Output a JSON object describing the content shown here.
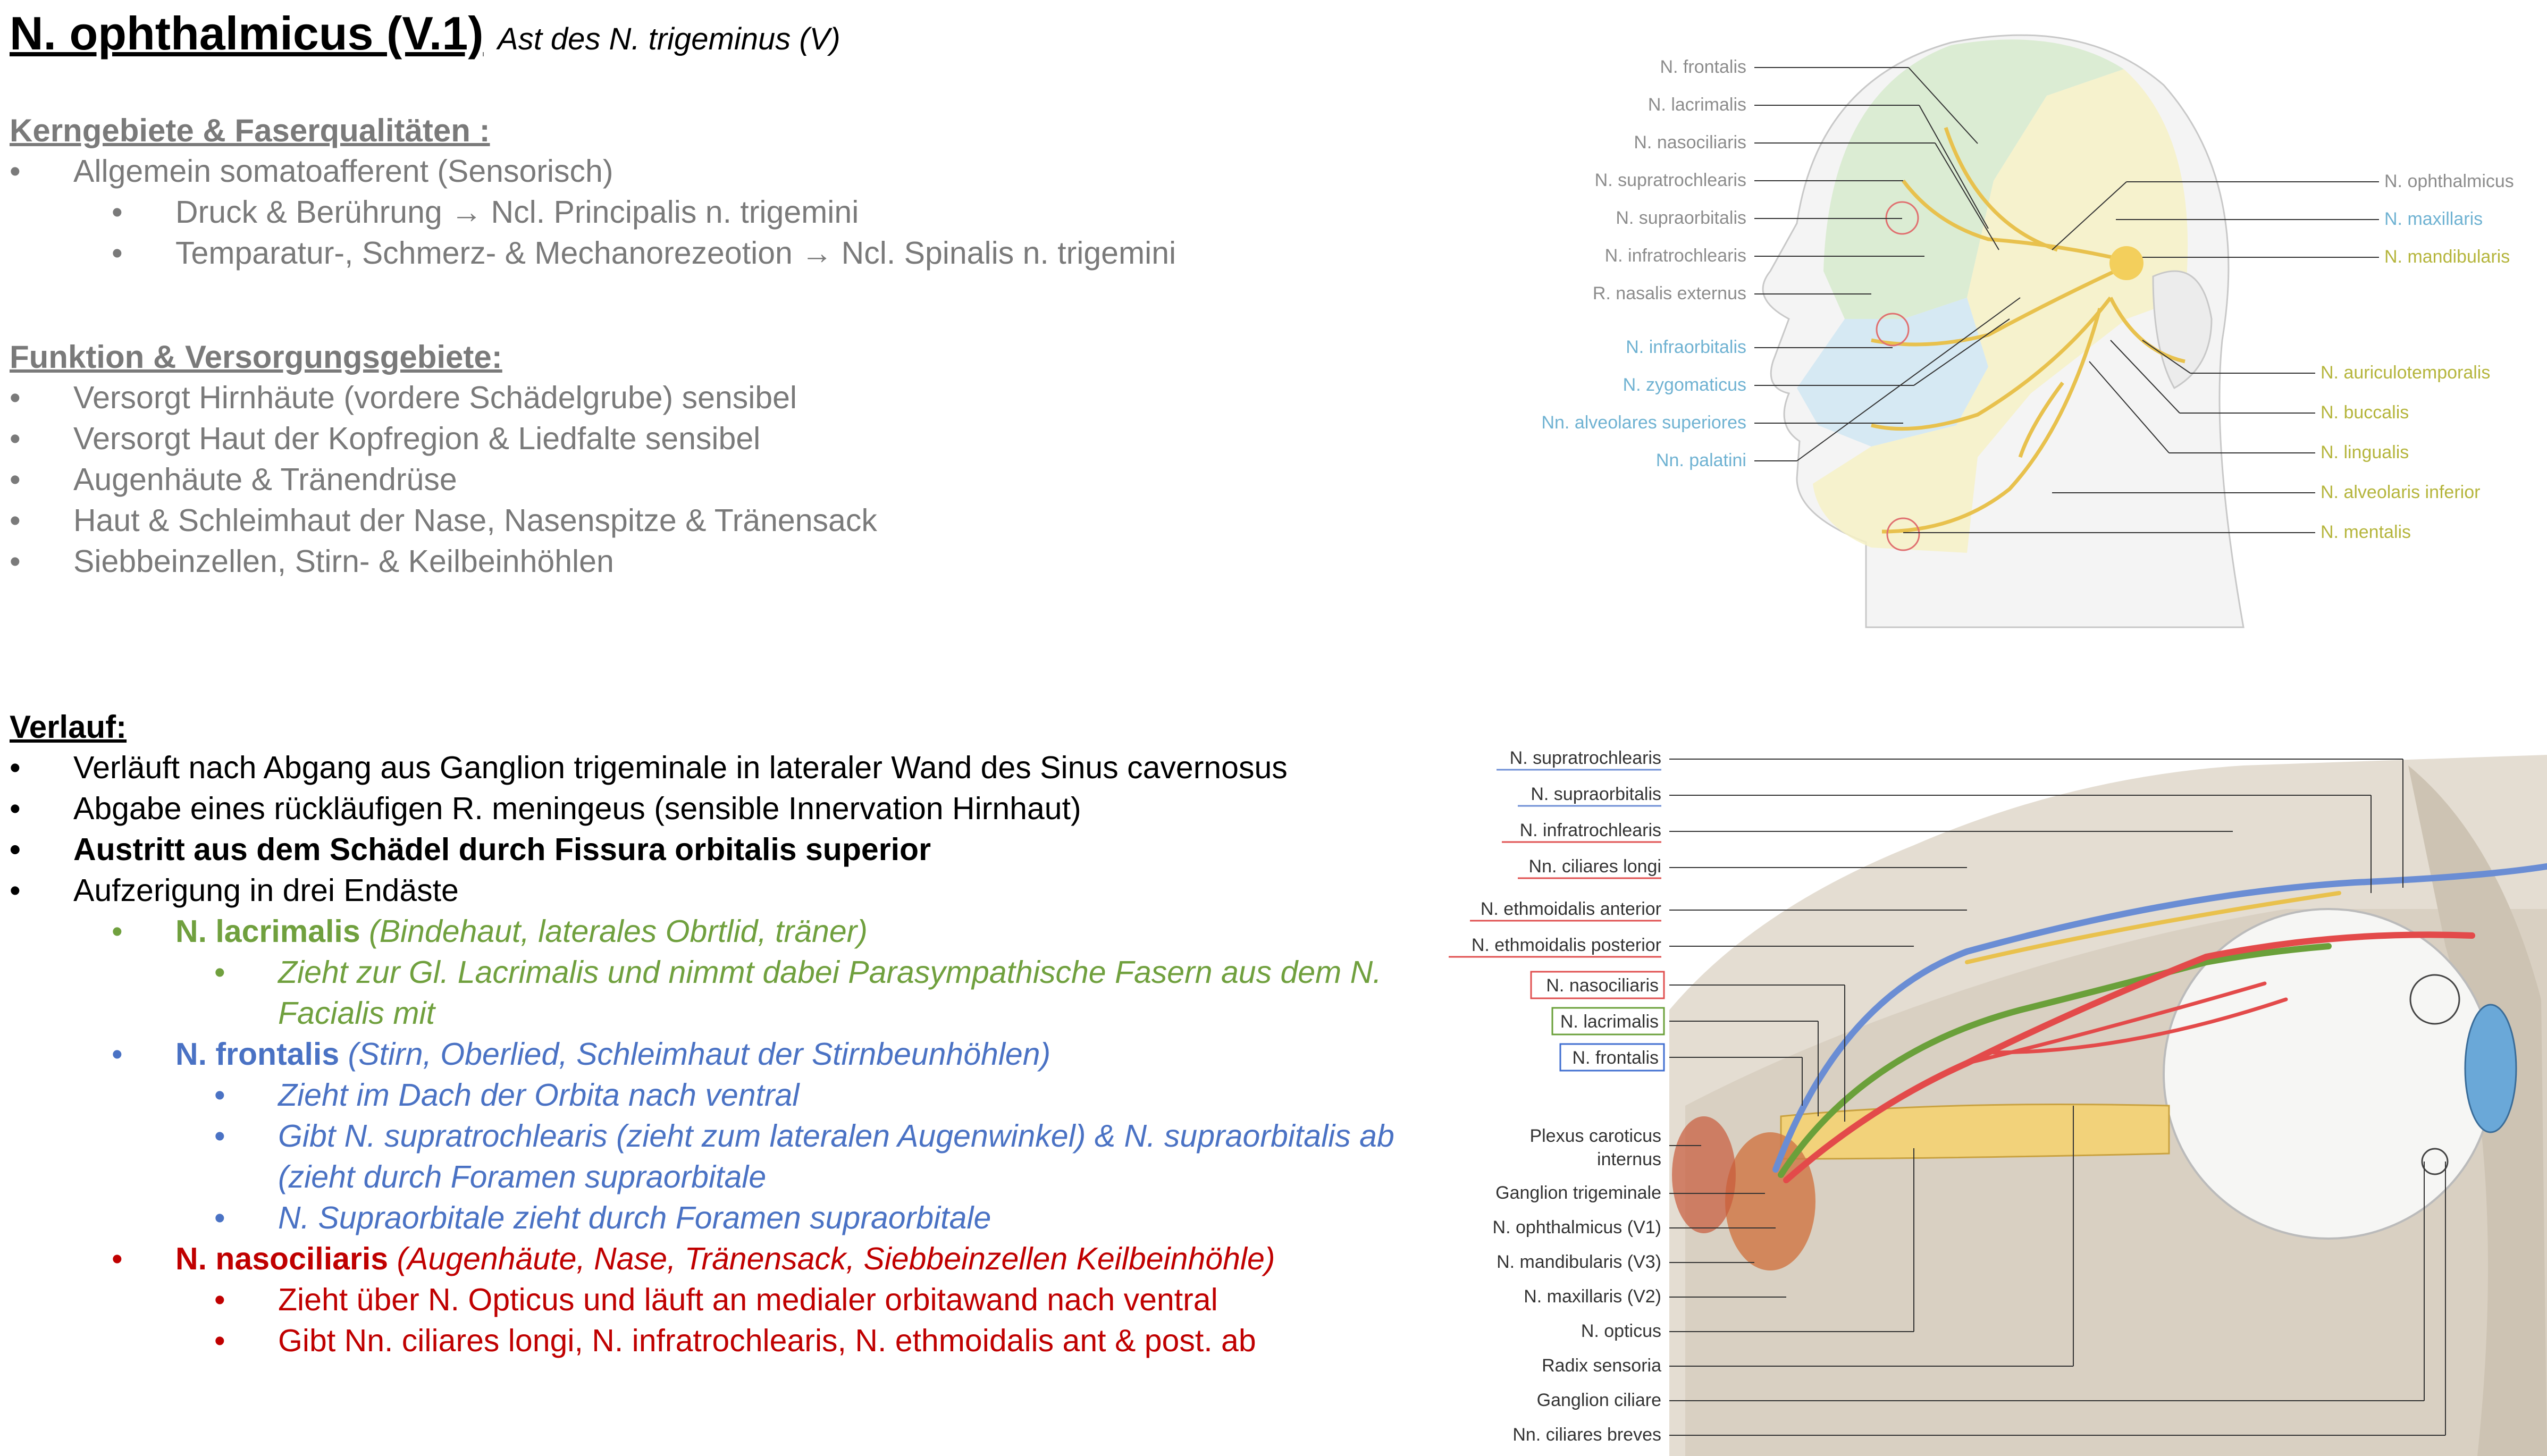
{
  "title": "N. ophthalmicus (V.1)",
  "subtitle": "Ast des N. trigeminus (V)",
  "kern": {
    "heading": "Kerngebiete & Faserqualitäten :",
    "items": [
      {
        "text": "Allgemein somatoafferent (Sensorisch)"
      },
      {
        "text": "Druck & Berührung → Ncl. Principalis n. trigemini"
      },
      {
        "text": "Temparatur-, Schmerz- & Mechanorezeotion → Ncl. Spinalis n. trigemini"
      }
    ]
  },
  "funktion": {
    "heading": "Funktion & Versorgungsgebiete:",
    "items": [
      "Versorgt Hirnhäute (vordere Schädelgrube) sensibel",
      "Versorgt Haut der Kopfregion & Liedfalte sensibel",
      "Augenhäute & Tränendrüse",
      "Haut & Schleimhaut der Nase, Nasenspitze & Tränensack",
      "Siebbeinzellen, Stirn- & Keilbeinhöhlen"
    ]
  },
  "verlauf": {
    "heading": "Verlauf:",
    "items": [
      "Verläuft nach Abgang aus Ganglion trigeminale in lateraler Wand des Sinus cavernosus",
      "Abgabe eines rückläufigen R. meningeus (sensible Innervation Hirnhaut)",
      "Austritt aus dem Schädel durch Fissura orbitalis superior",
      "Aufzerigung in drei Endäste"
    ],
    "lacrimalis": {
      "name": "N. lacrimalis",
      "desc": "(Bindehaut, laterales Obrtlid, träner)",
      "sub": [
        "Zieht zur Gl. Lacrimalis und nimmt dabei Parasympathische Fasern aus dem N.",
        "Facialis mit"
      ]
    },
    "frontalis": {
      "name": "N. frontalis",
      "desc": "(Stirn, Oberlied, Schleimhaut der Stirnbeunhöhlen)",
      "sub1": "Zieht im Dach der Orbita nach ventral",
      "sub2a": "Gibt N. supratrochlearis (zieht zum lateralen Augenwinkel) & N. supraorbitalis ab",
      "sub2b": "(zieht durch Foramen supraorbitale",
      "sub3": "N. Supraorbitale zieht durch Foramen supraorbitale"
    },
    "nasociliaris": {
      "name": "N. nasociliaris",
      "desc": "(Augenhäute, Nase, Tränensack, Siebbeinzellen Keilbeinhöhle)",
      "sub1": "Zieht über N. Opticus und läuft an medialer orbitawand nach ventral",
      "sub2": "Gibt Nn. ciliares longi, N. infratrochlearis, N. ethmoidalis ant & post. ab"
    }
  },
  "figure1": {
    "left_labels": [
      {
        "text": "N. frontalis",
        "color": "#8c8c8c"
      },
      {
        "text": "N. lacrimalis",
        "color": "#8c8c8c"
      },
      {
        "text": "N. nasociliaris",
        "color": "#8c8c8c"
      },
      {
        "text": "N. supratrochlearis",
        "color": "#8c8c8c"
      },
      {
        "text": "N. supraorbitalis",
        "color": "#8c8c8c"
      },
      {
        "text": "N. infratrochlearis",
        "color": "#8c8c8c"
      },
      {
        "text": "R. nasalis externus",
        "color": "#8c8c8c"
      },
      {
        "text": "N. infraorbitalis",
        "color": "#6fb2d2"
      },
      {
        "text": "N. zygomaticus",
        "color": "#6fb2d2"
      },
      {
        "text": "Nn. alveolares superiores",
        "color": "#6fb2d2"
      },
      {
        "text": "Nn. palatini",
        "color": "#6fb2d2"
      }
    ],
    "right_labels": [
      {
        "text": "N. ophthalmicus",
        "color": "#8c8c8c"
      },
      {
        "text": "N. maxillaris",
        "color": "#6fb2d2"
      },
      {
        "text": "N. mandibularis",
        "color": "#b5b53c"
      },
      {
        "text": "N. auriculotemporalis",
        "color": "#b5b53c"
      },
      {
        "text": "N. buccalis",
        "color": "#b5b53c"
      },
      {
        "text": "N. lingualis",
        "color": "#b5b53c"
      },
      {
        "text": "N. alveolaris inferior",
        "color": "#b5b53c"
      },
      {
        "text": "N. mentalis",
        "color": "#b5b53c"
      }
    ]
  },
  "figure2": {
    "labels": [
      {
        "text": "N. supratrochlearis",
        "accent": "#6f8fd6",
        "boxed": false
      },
      {
        "text": "N. supraorbitalis",
        "accent": "#6f8fd6",
        "boxed": false
      },
      {
        "text": "N. infratrochlearis",
        "accent": "#e05050",
        "boxed": false
      },
      {
        "text": "Nn. ciliares longi",
        "accent": "#e05050",
        "boxed": false
      },
      {
        "text": "N. ethmoidalis anterior",
        "accent": "#e05050",
        "boxed": false
      },
      {
        "text": "N. ethmoidalis posterior",
        "accent": "#e05050",
        "boxed": false
      },
      {
        "text": "N. nasociliaris",
        "accent": "#e05050",
        "boxed": true
      },
      {
        "text": "N. lacrimalis",
        "accent": "#6aa03a",
        "boxed": true
      },
      {
        "text": "N. frontalis",
        "accent": "#3f6ed0",
        "boxed": true
      }
    ],
    "plexus1": "Plexus caroticus",
    "plexus2": "internus",
    "lower_labels": [
      "Ganglion trigeminale",
      "N. ophthalmicus (V1)",
      "N. mandibularis (V3)",
      "N. maxillaris (V2)",
      "N. opticus",
      "Radix sensoria",
      "Ganglion ciliare",
      "Nn. ciliares breves"
    ]
  }
}
